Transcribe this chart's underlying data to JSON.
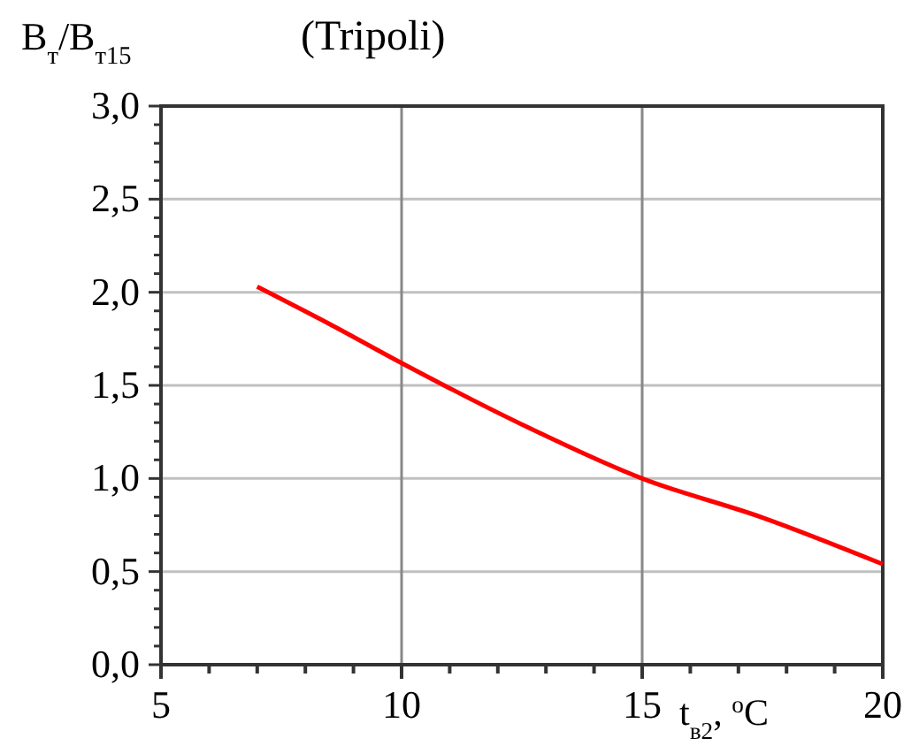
{
  "chart_data": {
    "type": "line",
    "title": "(Tripoli)",
    "xlabel": "t$_{в2}$, $^{o}$C",
    "ylabel": "B$_{т}$/B$_{т15}$",
    "x": [
      7,
      8.5,
      10,
      12.5,
      15,
      17.5,
      20
    ],
    "series": [
      {
        "color": "#ff0000",
        "values": [
          2.03,
          1.83,
          1.62,
          1.29,
          1.0,
          0.79,
          0.54
        ]
      }
    ],
    "xlim": [
      5,
      20
    ],
    "ylim": [
      0,
      3
    ],
    "xticks": [
      5,
      {
        "value": 6,
        "label": null
      },
      {
        "value": 7,
        "label": null
      },
      {
        "value": 8,
        "label": null
      },
      {
        "value": 9,
        "label": null
      },
      10,
      {
        "value": 11,
        "label": null
      },
      {
        "value": 12,
        "label": null
      },
      {
        "value": 13,
        "label": null
      },
      {
        "value": 14,
        "label": null
      },
      15,
      {
        "value": 16,
        "label": null
      },
      {
        "value": 17,
        "label": null
      },
      {
        "value": 18,
        "label": null
      },
      {
        "value": 19,
        "label": null
      },
      20
    ],
    "yticks": [
      {
        "value": 0,
        "label": "0,0"
      },
      {
        "value": 0.1,
        "label": null
      },
      {
        "value": 0.2,
        "label": null
      },
      {
        "value": 0.3,
        "label": null
      },
      {
        "value": 0.4,
        "label": null
      },
      {
        "value": 0.5,
        "label": "0,5"
      },
      {
        "value": 0.6,
        "label": null
      },
      {
        "value": 0.7,
        "label": null
      },
      {
        "value": 0.8,
        "label": null
      },
      {
        "value": 0.9,
        "label": null
      },
      {
        "value": 1,
        "label": "1,0"
      },
      {
        "value": 1.1,
        "label": null
      },
      {
        "value": 1.2,
        "label": null
      },
      {
        "value": 1.3,
        "label": null
      },
      {
        "value": 1.4,
        "label": null
      },
      {
        "value": 1.5,
        "label": "1,5"
      },
      {
        "value": 1.6,
        "label": null
      },
      {
        "value": 1.7,
        "label": null
      },
      {
        "value": 1.8,
        "label": null
      },
      {
        "value": 1.9,
        "label": null
      },
      {
        "value": 2,
        "label": "2,0"
      },
      {
        "value": 2.1,
        "label": null
      },
      {
        "value": 2.2,
        "label": null
      },
      {
        "value": 2.3,
        "label": null
      },
      {
        "value": 2.4,
        "label": null
      },
      {
        "value": 2.5,
        "label": "2,5"
      },
      {
        "value": 2.6,
        "label": null
      },
      {
        "value": 2.7,
        "label": null
      },
      {
        "value": 2.8,
        "label": null
      },
      {
        "value": 2.9,
        "label": null
      },
      {
        "value": 3,
        "label": "3,0"
      }
    ],
    "grid": true,
    "line_style": "solid",
    "marker": "none"
  }
}
